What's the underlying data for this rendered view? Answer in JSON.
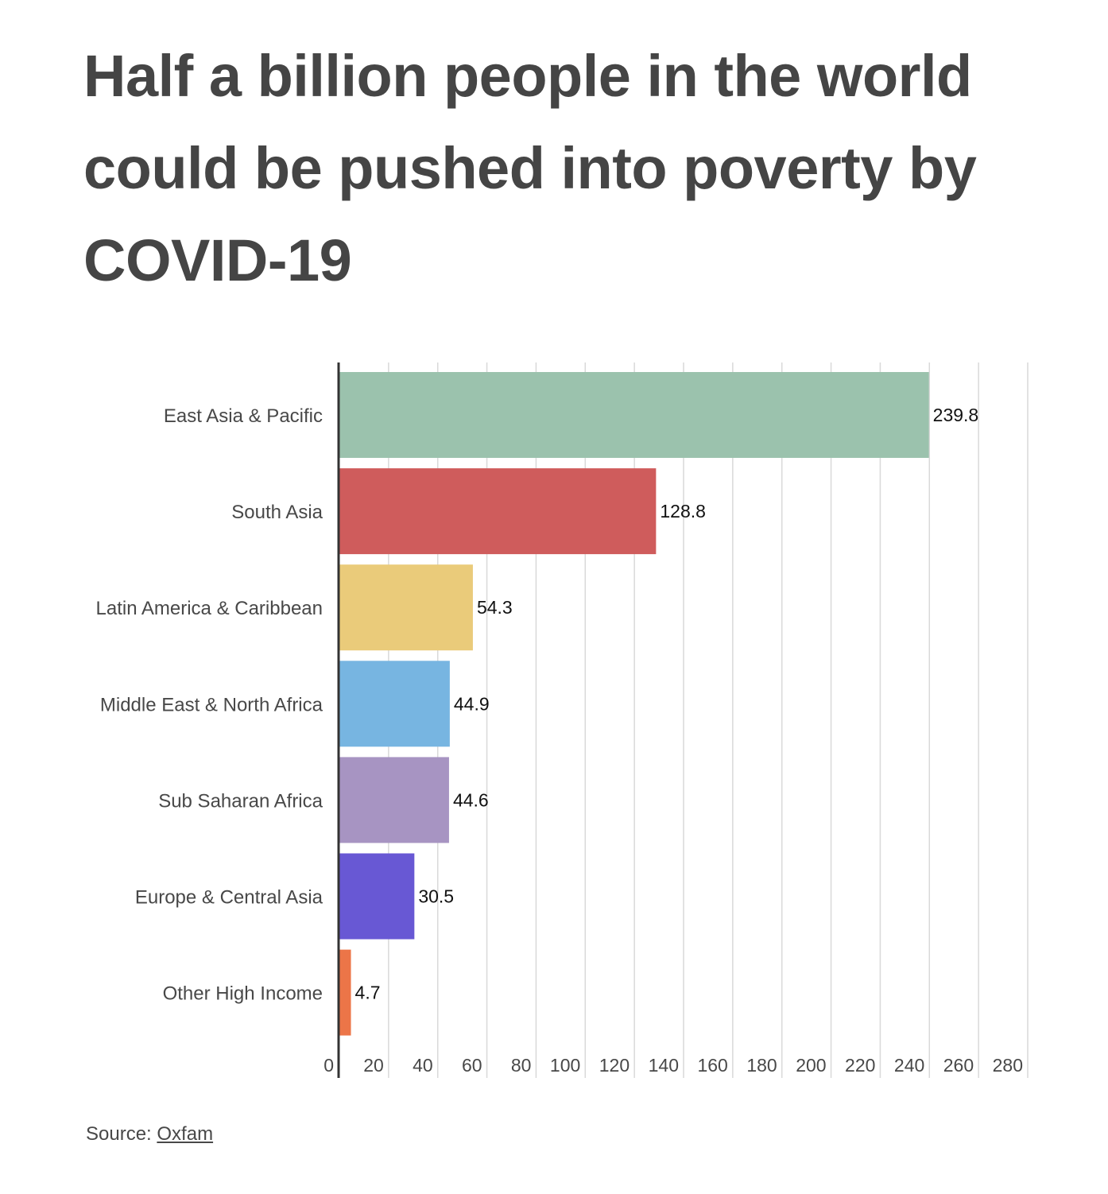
{
  "title": "Half a billion people in the world could be pushed into poverty by COVID-19",
  "source": {
    "prefix": "Source:",
    "link_text": "Oxfam"
  },
  "chart_data": {
    "type": "bar",
    "orientation": "horizontal",
    "title": "Half a billion people in the world could be pushed into poverty by COVID-19",
    "xlabel": "",
    "ylabel": "",
    "xlim": [
      0,
      280
    ],
    "x_ticks": [
      0,
      20,
      40,
      60,
      80,
      100,
      120,
      140,
      160,
      180,
      200,
      220,
      240,
      260,
      280
    ],
    "grid": true,
    "legend": "none",
    "categories": [
      "East Asia & Pacific",
      "South Asia",
      "Latin America & Caribbean",
      "Middle East & North Africa",
      "Sub Saharan Africa",
      "Europe & Central Asia",
      "Other High Income"
    ],
    "values": [
      239.8,
      128.8,
      54.3,
      44.9,
      44.6,
      30.5,
      4.7
    ],
    "value_labels": [
      "239.8",
      "128.8",
      "54.3",
      "44.9",
      "44.6",
      "30.5",
      "4.7"
    ],
    "colors": [
      "#9bc2ad",
      "#cf5c5c",
      "#eacb7a",
      "#77b5e1",
      "#a794c2",
      "#6858d4",
      "#ec7548"
    ]
  }
}
